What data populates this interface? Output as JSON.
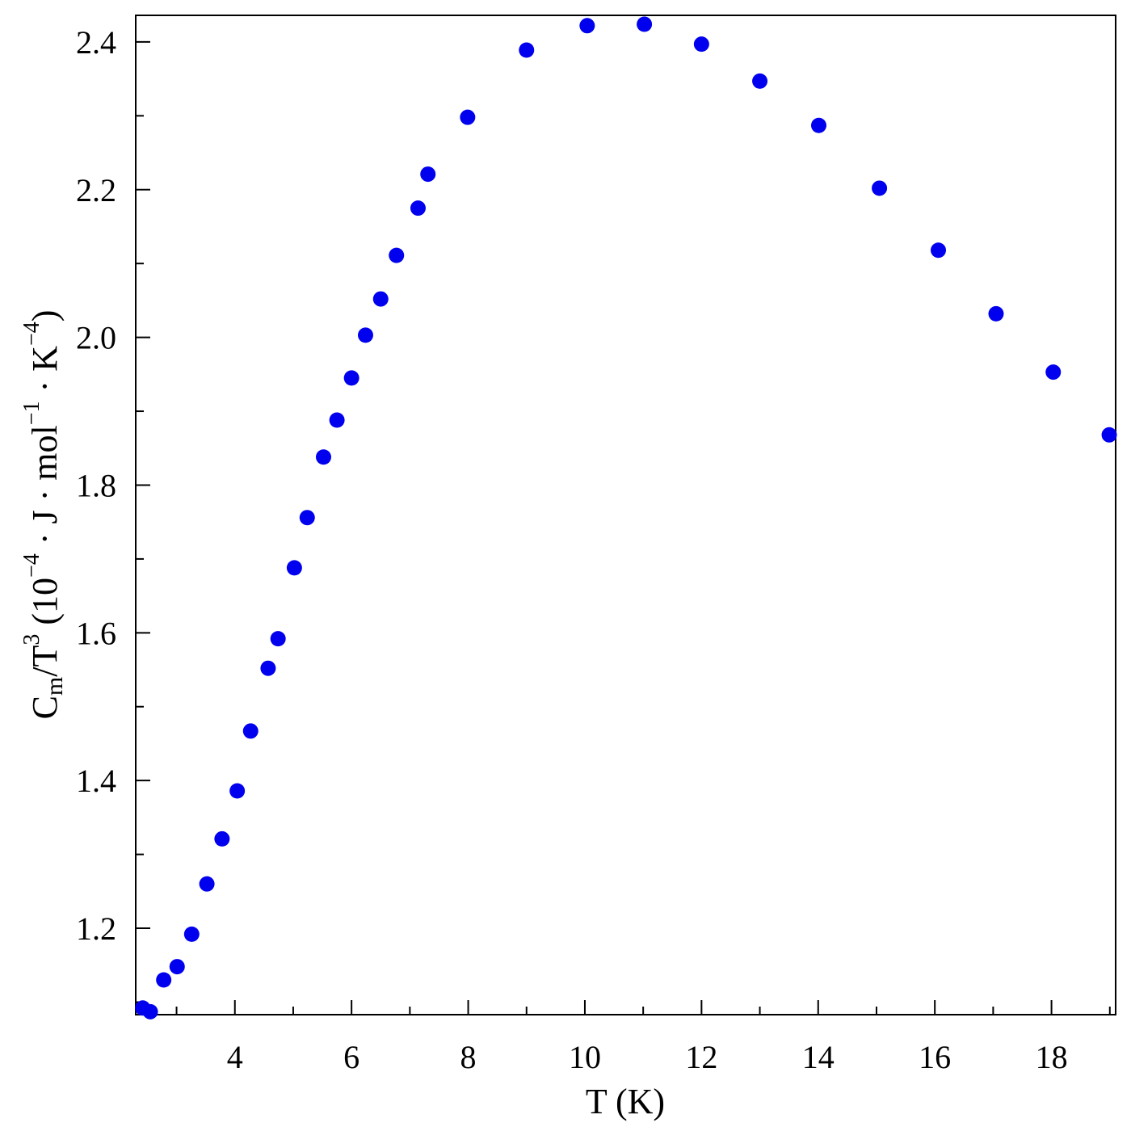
{
  "chart_data": {
    "type": "scatter",
    "title": "",
    "xlabel": "T (K)",
    "ylabel_parts": {
      "main": "C",
      "main_sub": "m",
      "slash": "/T",
      "slash_sup": "3",
      "unit_open": " (10",
      "unit_sup1": "−4",
      "unit_mid": " · J · mol",
      "unit_sup2": "−1",
      "unit_k": " · K",
      "unit_sup3": "−4",
      "unit_close": ")"
    },
    "xlim": [
      2.3,
      19.1
    ],
    "ylim": [
      1.083,
      2.436
    ],
    "x_ticks": [
      4,
      6,
      8,
      10,
      12,
      14,
      16,
      18
    ],
    "x_tick_labels": [
      "4",
      "6",
      "8",
      "10",
      "12",
      "14",
      "16",
      "18"
    ],
    "y_ticks": [
      1.2,
      1.4,
      1.6,
      1.8,
      2.0,
      2.2,
      2.4
    ],
    "y_tick_labels": [
      "1.2",
      "1.4",
      "1.6",
      "1.8",
      "2.0",
      "2.2",
      "2.4"
    ],
    "grid": false,
    "marker_color": "#0000ee",
    "series": [
      {
        "points": [
          {
            "x": 2.42,
            "y": 1.092
          },
          {
            "x": 2.55,
            "y": 1.087
          },
          {
            "x": 2.78,
            "y": 1.13
          },
          {
            "x": 3.01,
            "y": 1.148
          },
          {
            "x": 3.26,
            "y": 1.192
          },
          {
            "x": 3.52,
            "y": 1.26
          },
          {
            "x": 3.78,
            "y": 1.321
          },
          {
            "x": 4.04,
            "y": 1.386
          },
          {
            "x": 4.27,
            "y": 1.467
          },
          {
            "x": 4.57,
            "y": 1.552
          },
          {
            "x": 4.74,
            "y": 1.592
          },
          {
            "x": 5.02,
            "y": 1.688
          },
          {
            "x": 5.24,
            "y": 1.756
          },
          {
            "x": 5.52,
            "y": 1.838
          },
          {
            "x": 5.75,
            "y": 1.888
          },
          {
            "x": 6.0,
            "y": 1.945
          },
          {
            "x": 6.24,
            "y": 2.003
          },
          {
            "x": 6.5,
            "y": 2.052
          },
          {
            "x": 6.77,
            "y": 2.111
          },
          {
            "x": 7.14,
            "y": 2.175
          },
          {
            "x": 7.31,
            "y": 2.221
          },
          {
            "x": 7.99,
            "y": 2.298
          },
          {
            "x": 9.0,
            "y": 2.389
          },
          {
            "x": 10.04,
            "y": 2.422
          },
          {
            "x": 11.02,
            "y": 2.424
          },
          {
            "x": 12.0,
            "y": 2.397
          },
          {
            "x": 13.0,
            "y": 2.347
          },
          {
            "x": 14.01,
            "y": 2.287
          },
          {
            "x": 15.05,
            "y": 2.202
          },
          {
            "x": 16.06,
            "y": 2.118
          },
          {
            "x": 17.05,
            "y": 2.032
          },
          {
            "x": 18.03,
            "y": 1.953
          },
          {
            "x": 18.99,
            "y": 1.868
          }
        ]
      }
    ]
  }
}
